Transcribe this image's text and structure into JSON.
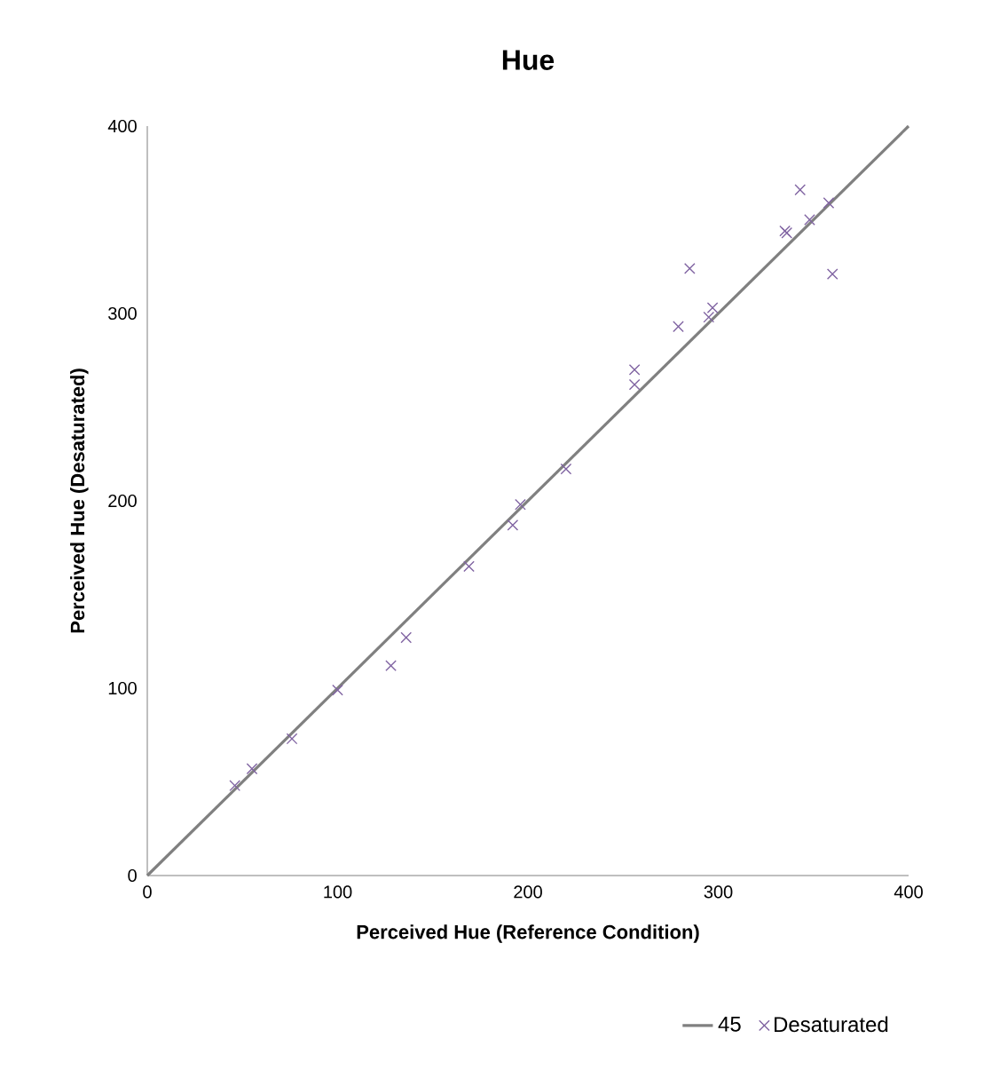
{
  "chart_data": {
    "type": "scatter",
    "title": "Hue",
    "xlabel": "Perceived Hue (Reference Condition)",
    "ylabel": "Perceived Hue (Desaturated)",
    "xlim": [
      0,
      400
    ],
    "ylim": [
      0,
      400
    ],
    "xticks": [
      0,
      100,
      200,
      300,
      400
    ],
    "yticks": [
      0,
      100,
      200,
      300,
      400
    ],
    "grid": false,
    "legend": "bottom",
    "marker": "cross",
    "series": [
      {
        "name": "45",
        "type": "line",
        "color": "#808080",
        "marker": "none",
        "x": [
          0,
          400
        ],
        "values": [
          0,
          400
        ]
      },
      {
        "name": "Desaturated",
        "color": "#8064a2",
        "x": [
          46,
          55,
          76,
          100,
          128,
          136,
          169,
          192,
          196,
          220,
          256,
          256,
          279,
          285,
          295,
          297,
          335,
          336,
          343,
          348,
          358,
          360
        ],
        "values": [
          48,
          57,
          73,
          99,
          112,
          127,
          165,
          187,
          198,
          217,
          270,
          262,
          293,
          324,
          298,
          303,
          344,
          343,
          366,
          350,
          359,
          321
        ]
      }
    ]
  }
}
